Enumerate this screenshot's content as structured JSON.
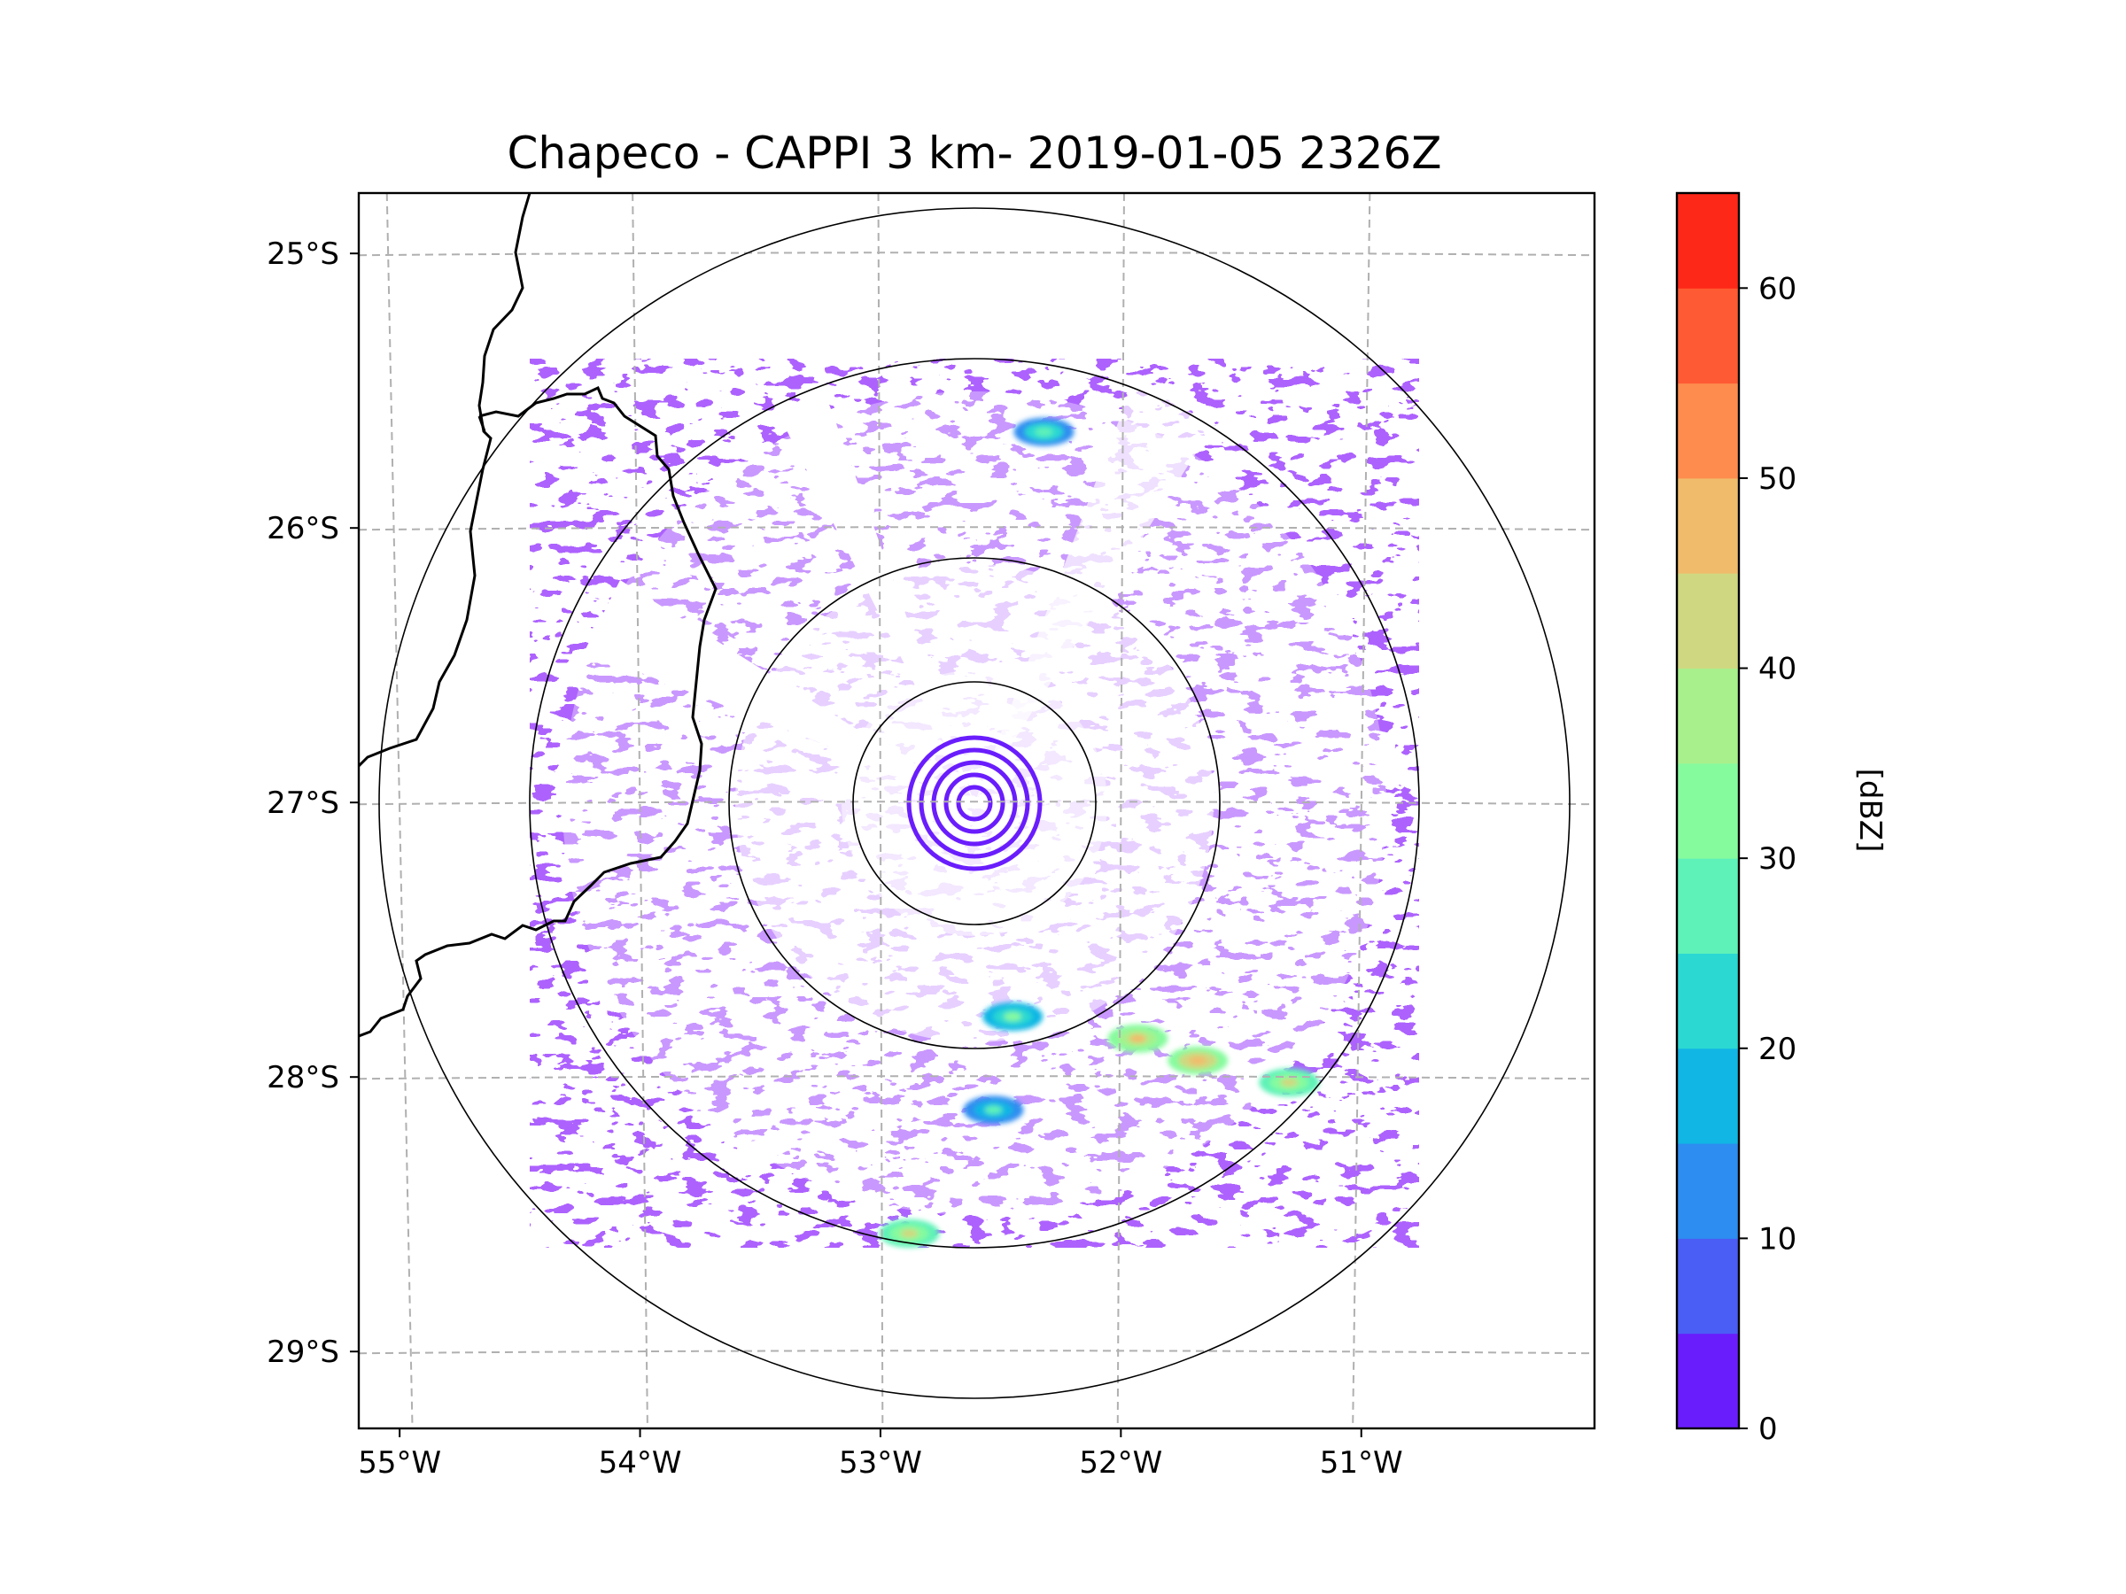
{
  "chart_data": {
    "type": "heatmap",
    "title": "Chapeco - CAPPI 3 km- 2019-01-05 2326Z",
    "subtype": "radar PPI map (CAPPI reflectivity)",
    "x_tick_labels": [
      "55°W",
      "54°W",
      "53°W",
      "52°W",
      "51°W"
    ],
    "x_ticks_deg": [
      -55,
      -54,
      -53,
      -52,
      -51
    ],
    "y_tick_labels": [
      "25°S",
      "26°S",
      "27°S",
      "28°S",
      "29°S"
    ],
    "y_ticks_deg": [
      -25,
      -26,
      -27,
      -28,
      -29
    ],
    "xlim": [
      -55.17,
      -50.03
    ],
    "ylim": [
      -29.28,
      -24.78
    ],
    "radar_center": {
      "lon": -52.6,
      "lat": -27.03
    },
    "range_rings_deg": [
      0.45,
      0.92,
      1.86,
      2.47
    ],
    "colorbar": {
      "label": "[dBZ]",
      "min": 0,
      "max": 65,
      "step": 5,
      "tick_values": [
        0,
        10,
        20,
        30,
        40,
        50,
        60
      ],
      "tick_labels": [
        "0",
        "10",
        "20",
        "30",
        "40",
        "50",
        "60"
      ],
      "colors": [
        "#6a1dfc",
        "#4a5df5",
        "#2d8df0",
        "#11b6e4",
        "#2bd8d2",
        "#5ef2b8",
        "#86fb9e",
        "#a8f08c",
        "#cfd880",
        "#f0bc6c",
        "#fd8c4e",
        "#fe5a33",
        "#fe2818"
      ]
    },
    "echo_cells": [
      {
        "lon": -52.32,
        "lat": -25.65,
        "dbz": 28
      },
      {
        "lon": -52.45,
        "lat": -27.78,
        "dbz": 30
      },
      {
        "lon": -51.93,
        "lat": -27.86,
        "dbz": 45
      },
      {
        "lon": -51.68,
        "lat": -27.94,
        "dbz": 48
      },
      {
        "lon": -51.3,
        "lat": -28.02,
        "dbz": 40
      },
      {
        "lon": -52.53,
        "lat": -28.12,
        "dbz": 25
      },
      {
        "lon": -52.88,
        "lat": -28.57,
        "dbz": 40
      }
    ]
  }
}
